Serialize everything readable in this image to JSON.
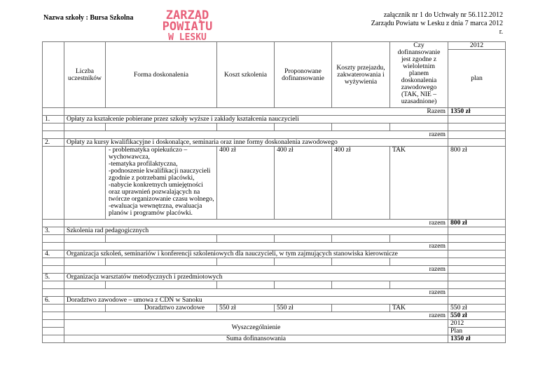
{
  "header": {
    "school_name": "Nazwa szkoły : Bursa Szkolna",
    "stamp_line1": "ZARZĄD POWIATU",
    "stamp_line2": "W LESKU",
    "attachment_line1": "załącznik nr 1 do Uchwały nr 56.112.2012",
    "attachment_line2": "Zarządu Powiatu w Lesku z dnia 7 marca 2012 r.",
    "stamp_color": "#e8607a"
  },
  "table": {
    "columns": {
      "participants": "Liczba uczestników",
      "form": "Forma doskonalenia",
      "cost": "Koszt szkolenia",
      "proposed": "Proponowane dofinansowanie",
      "travel": "Koszty przejazdu, zakwaterowania i wyżywienia",
      "compliance": "Czy dofinansowanie jest zgodne z wieloletnim planem doskonalenia zawodowego (TAK, NIE – uzasadnione)",
      "year": "2012",
      "plan": "plan"
    },
    "total_row": {
      "label": "Razem",
      "value": "1350 zł"
    },
    "razem_label": "razem",
    "sections": [
      {
        "num": "1.",
        "title": "Opłaty za kształcenie pobierane przez szkoły wyższe i zakłady kształcenia nauczycieli",
        "total": ""
      },
      {
        "num": "2.",
        "title": "Opłaty za kursy kwalifikacyjne i doskonalące, seminaria oraz inne formy doskonalenia zawodowego",
        "total": "800 zł",
        "item": {
          "form": "- problematyka opiekuńczo – wychowawcza,\n-tematyka profilaktyczna,\n-podnoszenie kwalifikacji nauczycieli zgodnie z potrzebami placówki,\n-nabycie konkretnych umiejętności oraz uprawnień pozwalających na twórcze organizowanie czasu wolnego,\n-ewaluacja wewnętrzna, ewaluacja planów i programów placówki.",
          "cost": "400 zł",
          "proposed": "400 zł",
          "travel": "400 zł",
          "compliance": "TAK",
          "plan": "800 zł"
        }
      },
      {
        "num": "3.",
        "title": "Szkolenia rad pedagogicznych",
        "total": ""
      },
      {
        "num": "4.",
        "title": "Organizacja szkoleń, seminariów i konferencji szkoleniowych dla nauczycieli, w tym zajmujących stanowiska kierownicze",
        "total": ""
      },
      {
        "num": "5.",
        "title": "Organizacja warsztatów metodycznych i przedmiotowych",
        "total": ""
      },
      {
        "num": "6.",
        "title": "Doradztwo zawodowe – umowa z CDN w Sanoku",
        "total": "550 zł",
        "item": {
          "form": "Doradztwo zawodowe",
          "cost": "550 zł",
          "proposed": "550 zł",
          "travel": "",
          "compliance": "TAK",
          "plan": "550 zł"
        }
      }
    ],
    "summary": {
      "label": "Wyszczególnienie",
      "year": "2012",
      "plan": "Plan",
      "sum_label": "Suma dofinansowania",
      "sum_value": "1350 zł"
    }
  }
}
